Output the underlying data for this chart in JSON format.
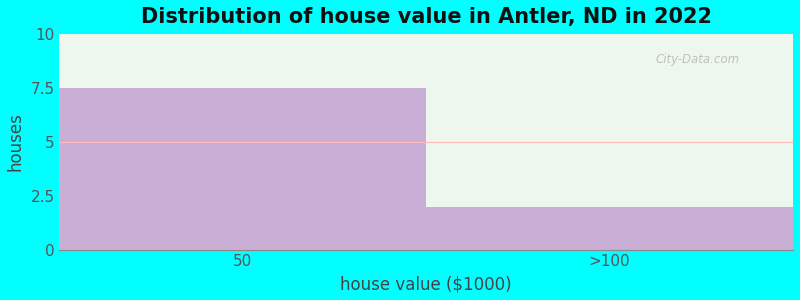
{
  "title": "Distribution of house value in Antler, ND in 2022",
  "xlabel": "house value ($1000)",
  "ylabel": "houses",
  "categories": [
    "50",
    ">100"
  ],
  "values": [
    7.5,
    2.0
  ],
  "bar_color": "#c9aed6",
  "bar_edgecolor": "#c9aed6",
  "ylim": [
    0,
    10
  ],
  "yticks": [
    0,
    2.5,
    5,
    7.5,
    10
  ],
  "background_color": "#00FFFF",
  "plot_bg_color": "#edf7ee",
  "title_fontsize": 15,
  "label_fontsize": 12,
  "tick_fontsize": 11,
  "watermark": "City-Data.com",
  "mid_line_color": "#ffbbbb",
  "bar_width": 1.0
}
